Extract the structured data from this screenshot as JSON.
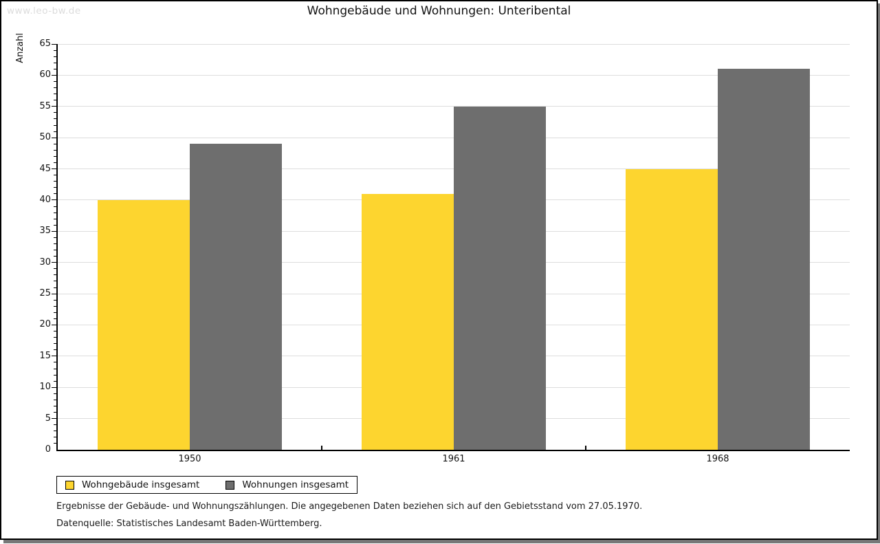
{
  "watermark": "www.leo-bw.de",
  "title": "Wohngebäude und Wohnungen: Unteribental",
  "chart_data": {
    "type": "bar",
    "title": "Wohngebäude und Wohnungen: Unteribental",
    "categories": [
      "1950",
      "1961",
      "1968"
    ],
    "series": [
      {
        "name": "Wohngebäude insgesamt",
        "color": "#FDD52F",
        "values": [
          40,
          41,
          45
        ]
      },
      {
        "name": "Wohnungen insgesamt",
        "color": "#6E6E6E",
        "values": [
          49,
          55,
          61
        ]
      }
    ],
    "xlabel": "",
    "ylabel": "Anzahl",
    "ylim": [
      0,
      65
    ],
    "ytick_step": 5,
    "minor_tick_step": 1,
    "grid": true,
    "gridline_color": "#dddddd",
    "legend_position": "bottom-left"
  },
  "footnotes": [
    "Ergebnisse der Gebäude- und Wohnungszählungen. Die angegebenen Daten beziehen sich auf den Gebietsstand vom 27.05.1970.",
    "Datenquelle: Statistisches Landesamt Baden-Württemberg."
  ]
}
